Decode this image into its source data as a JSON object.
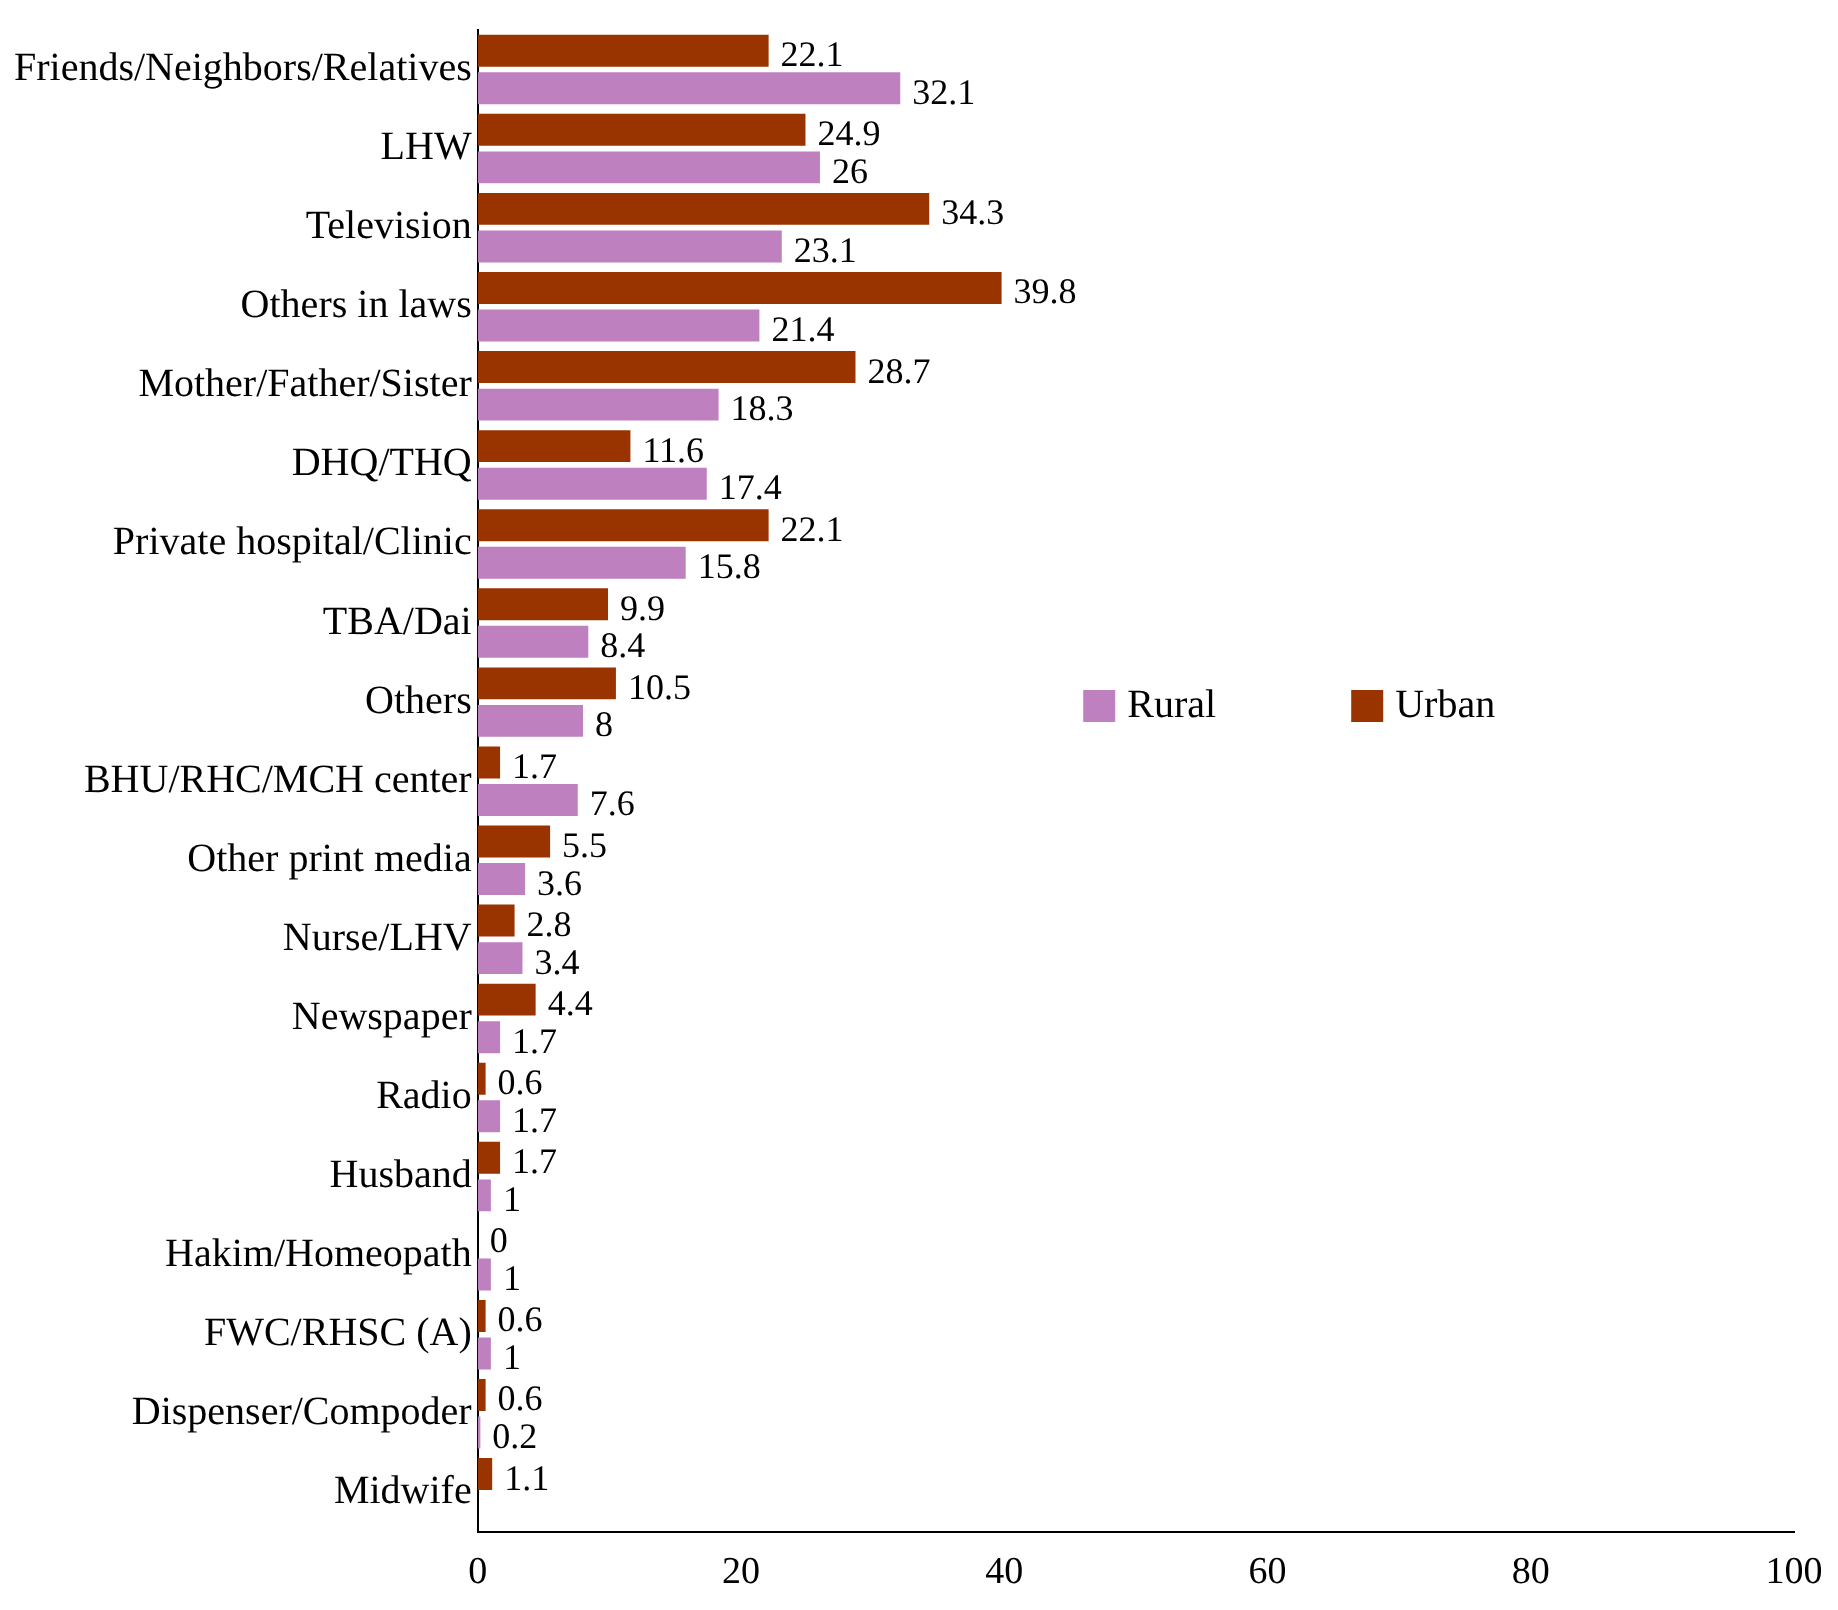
{
  "chart_data": {
    "type": "bar",
    "orientation": "horizontal",
    "categories": [
      "Friends/Neighbors/Relatives",
      "LHW",
      "Television",
      "Others in laws",
      "Mother/Father/Sister",
      "DHQ/THQ",
      "Private hospital/Clinic",
      "TBA/Dai",
      "Others",
      "BHU/RHC/MCH center",
      "Other print media",
      "Nurse/LHV",
      "Newspaper",
      "Radio",
      "Husband",
      "Hakim/Homeopath",
      "FWC/RHSC (A)",
      "Dispenser/Compoder",
      "Midwife"
    ],
    "series": [
      {
        "name": "Urban",
        "color": "#993300",
        "values": [
          22.1,
          24.9,
          34.3,
          39.8,
          28.7,
          11.6,
          22.1,
          9.9,
          10.5,
          1.7,
          5.5,
          2.8,
          4.4,
          0.6,
          1.7,
          0,
          0.6,
          0.6,
          1.1
        ]
      },
      {
        "name": "Rural",
        "color": "#bf80bf",
        "values": [
          32.1,
          26,
          23.1,
          21.4,
          18.3,
          17.4,
          15.8,
          8.4,
          8,
          7.6,
          3.6,
          3.4,
          1.7,
          1.7,
          1,
          1,
          1,
          0.2,
          null
        ]
      }
    ],
    "xlim": [
      0,
      100
    ],
    "xticks": [
      0,
      20,
      40,
      60,
      80,
      100
    ],
    "grid": false,
    "legend": "right",
    "data_labels": true
  }
}
